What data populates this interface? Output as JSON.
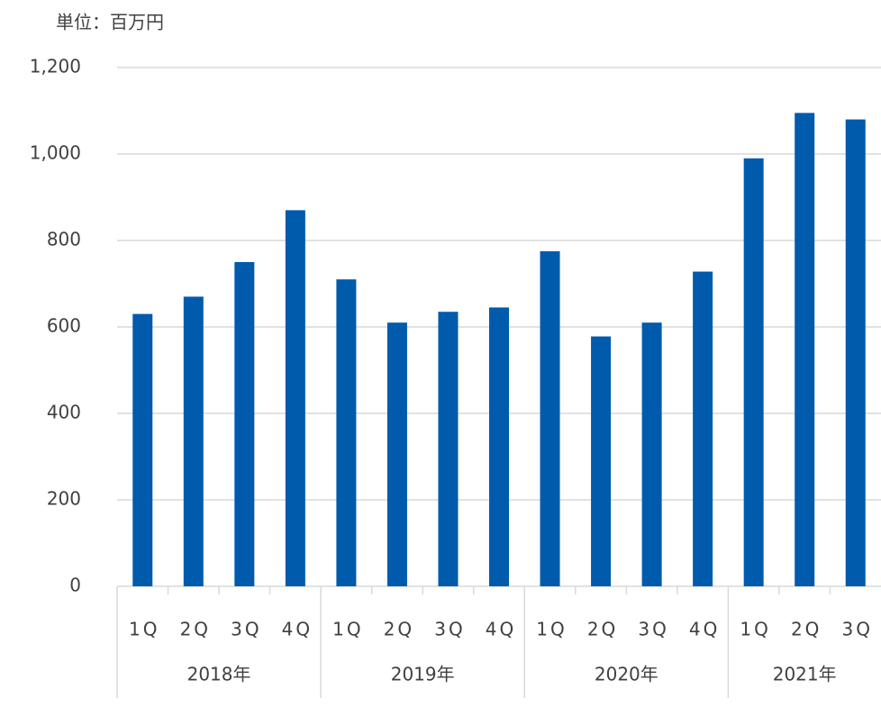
{
  "chart_data": {
    "type": "bar",
    "unit_label": "単位：百万円",
    "groups": [
      {
        "name": "2018年",
        "categories": [
          "1Q",
          "2Q",
          "3Q",
          "4Q"
        ]
      },
      {
        "name": "2019年",
        "categories": [
          "1Q",
          "2Q",
          "3Q",
          "4Q"
        ]
      },
      {
        "name": "2020年",
        "categories": [
          "1Q",
          "2Q",
          "3Q",
          "4Q"
        ]
      },
      {
        "name": "2021年",
        "categories": [
          "1Q",
          "2Q",
          "3Q"
        ]
      }
    ],
    "values": [
      630,
      670,
      750,
      870,
      710,
      610,
      635,
      645,
      775,
      578,
      610,
      728,
      990,
      1095,
      1080
    ],
    "color": "#005bac",
    "ylim": [
      0,
      1200
    ],
    "yticks": [
      0,
      200,
      400,
      600,
      800,
      {
        "value": 1000,
        "label": "1,000"
      },
      {
        "value": 1200,
        "label": "1,200"
      }
    ],
    "grid": true
  }
}
